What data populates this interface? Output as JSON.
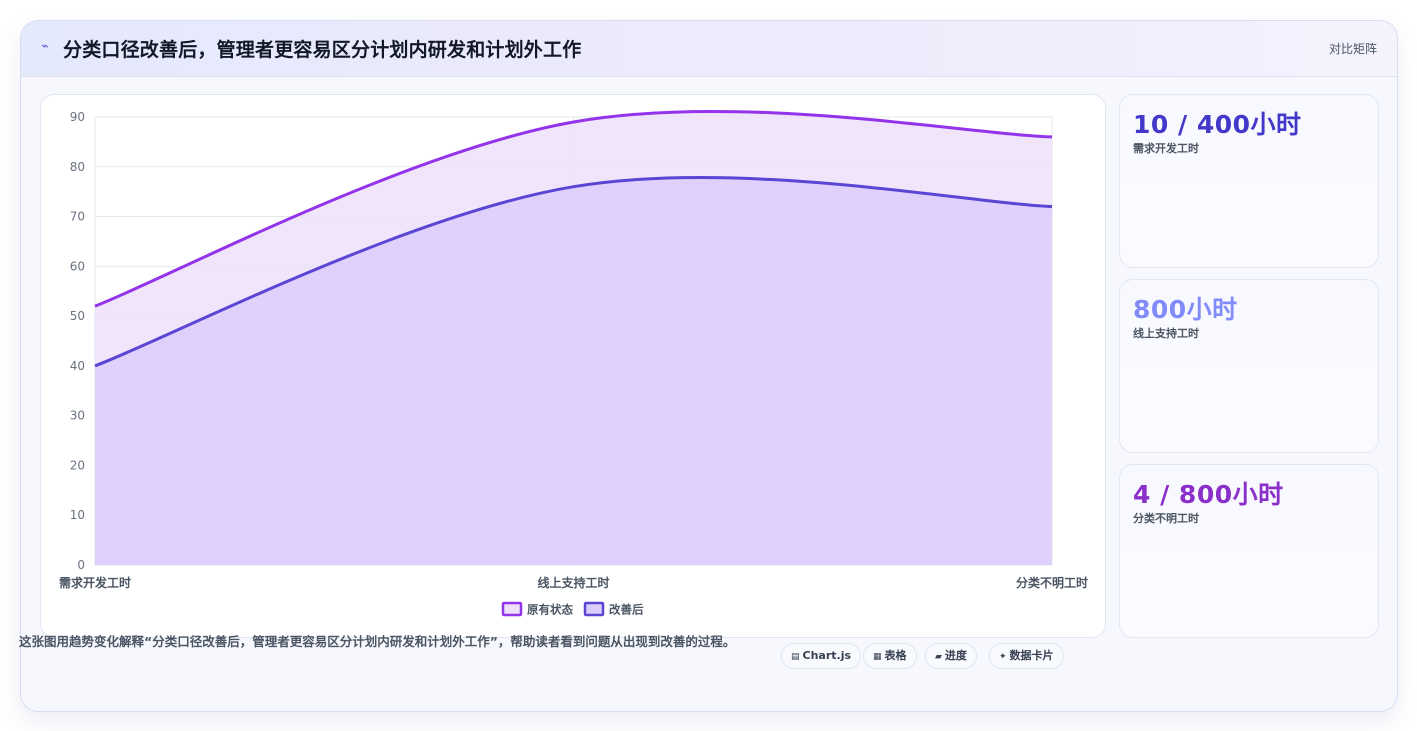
{
  "header": {
    "icon": "⌁",
    "title": "分类口径改善后，管理者更容易区分计划内研发和计划外工作",
    "tag": "对比矩阵"
  },
  "chart_data": {
    "type": "area",
    "categories": [
      "需求开发工时",
      "线上支持工时",
      "分类不明工时"
    ],
    "series": [
      {
        "name": "原有状态",
        "values": [
          52,
          89,
          86
        ],
        "color": "#9333ea",
        "fill": "#ede0fa"
      },
      {
        "name": "改善后",
        "values": [
          40,
          76,
          72
        ],
        "color": "#5a45d4",
        "fill": "#dccefa"
      }
    ],
    "ylim": [
      0,
      90
    ],
    "yticks": [
      0,
      10,
      20,
      30,
      40,
      50,
      60,
      70,
      80,
      90
    ],
    "grid": true,
    "legend": "bottom"
  },
  "stats": [
    {
      "value": "10 / 400小时",
      "label": "需求开发工时",
      "color": "#4338ca"
    },
    {
      "value": "800小时",
      "label": "线上支持工时",
      "color": "#818cf8"
    },
    {
      "value": "4 / 800小时",
      "label": "分类不明工时",
      "color": "#8b2fc9"
    }
  ],
  "footer": {
    "text": "这张图用趋势变化解释“分类口径改善后，管理者更容易区分计划内研发和计划外工作”，帮助读者看到问题从出现到改善的过程。",
    "chips": [
      {
        "icon": "▤",
        "label": "Chart.js"
      },
      {
        "icon": "▦",
        "label": "表格"
      },
      {
        "icon": "▰",
        "label": "进度"
      },
      {
        "icon": "✦",
        "label": "数据卡片"
      }
    ]
  }
}
